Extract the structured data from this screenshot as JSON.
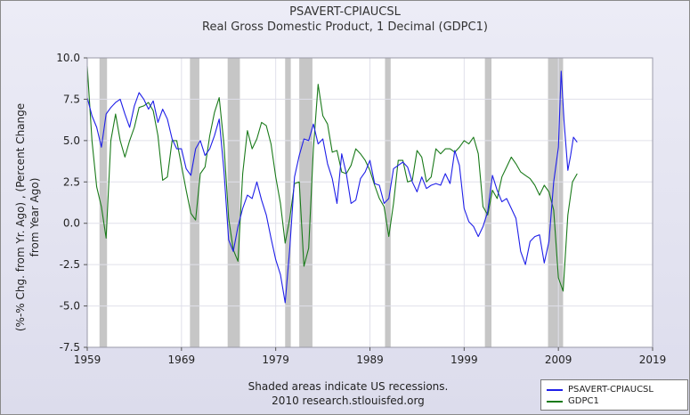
{
  "header": {
    "title": "PSAVERT-CPIAUCSL",
    "subtitle": "Real Gross Domestic Product, 1 Decimal (GDPC1)"
  },
  "footer": {
    "line1": "Shaded areas indicate US recessions.",
    "line2": "2010 research.stlouisfed.org"
  },
  "chart_data": {
    "type": "line",
    "ylabel_lines": [
      "(%-% Chg. from Yr. Ago) , (Percent Change",
      "from Year Ago)"
    ],
    "xlabel": "",
    "xlim": [
      1959,
      2019
    ],
    "ylim": [
      -7.5,
      10.0
    ],
    "x_ticks": [
      1959,
      1969,
      1979,
      1989,
      1999,
      2009,
      2019
    ],
    "y_ticks": [
      -7.5,
      -5.0,
      -2.5,
      0.0,
      2.5,
      5.0,
      7.5,
      10.0
    ],
    "y_tick_labels": [
      "-7.5",
      "-5.0",
      "-2.5",
      "0.0",
      "2.5",
      "5.0",
      "7.5",
      "10.0"
    ],
    "grid": true,
    "legend_position": "bottom-right",
    "recessions": [
      [
        1960.3,
        1961.1
      ],
      [
        1969.9,
        1970.9
      ],
      [
        1973.9,
        1975.2
      ],
      [
        1980.0,
        1980.6
      ],
      [
        1981.5,
        1982.9
      ],
      [
        1990.6,
        1991.2
      ],
      [
        2001.2,
        2001.9
      ],
      [
        2007.9,
        2009.5
      ]
    ],
    "series": [
      {
        "name": "PSAVERT-CPIAUCSL",
        "color": "#1f1fe8",
        "x": [
          1959.0,
          1959.5,
          1960.0,
          1960.5,
          1961.0,
          1961.5,
          1962.0,
          1962.5,
          1963.0,
          1963.5,
          1964.0,
          1964.5,
          1965.0,
          1965.5,
          1966.0,
          1966.5,
          1967.0,
          1967.5,
          1968.0,
          1968.5,
          1969.0,
          1969.5,
          1970.0,
          1970.5,
          1971.0,
          1971.5,
          1972.0,
          1972.5,
          1973.0,
          1973.5,
          1974.0,
          1974.5,
          1975.0,
          1975.5,
          1976.0,
          1976.5,
          1977.0,
          1977.5,
          1978.0,
          1978.5,
          1979.0,
          1979.5,
          1980.0,
          1980.5,
          1981.0,
          1981.5,
          1982.0,
          1982.5,
          1983.0,
          1983.5,
          1984.0,
          1984.5,
          1985.0,
          1985.5,
          1986.0,
          1986.5,
          1987.0,
          1987.5,
          1988.0,
          1988.5,
          1989.0,
          1989.5,
          1990.0,
          1990.5,
          1991.0,
          1991.5,
          1992.0,
          1992.5,
          1993.0,
          1993.5,
          1994.0,
          1994.5,
          1995.0,
          1995.5,
          1996.0,
          1996.5,
          1997.0,
          1997.5,
          1998.0,
          1998.5,
          1999.0,
          1999.5,
          2000.0,
          2000.5,
          2001.0,
          2001.5,
          2002.0,
          2002.5,
          2003.0,
          2003.5,
          2004.0,
          2004.5,
          2005.0,
          2005.5,
          2006.0,
          2006.5,
          2007.0,
          2007.5,
          2008.0,
          2008.5,
          2009.0,
          2009.3,
          2009.6,
          2010.0,
          2010.3,
          2010.6,
          2011.0
        ],
        "y": [
          7.6,
          6.5,
          5.8,
          4.6,
          6.6,
          7.0,
          7.3,
          7.5,
          6.6,
          5.8,
          7.1,
          7.9,
          7.5,
          6.9,
          7.4,
          6.1,
          6.9,
          6.3,
          5.1,
          4.5,
          4.5,
          3.3,
          2.9,
          4.5,
          5.0,
          4.1,
          4.5,
          5.3,
          6.3,
          3.2,
          -1.0,
          -1.7,
          -0.2,
          0.9,
          1.7,
          1.5,
          2.5,
          1.4,
          0.5,
          -0.9,
          -2.2,
          -3.1,
          -4.8,
          -1.5,
          2.8,
          4.1,
          5.1,
          5.0,
          6.0,
          4.8,
          5.1,
          3.6,
          2.7,
          1.2,
          4.2,
          3.0,
          1.2,
          1.4,
          2.7,
          3.1,
          3.8,
          2.4,
          2.3,
          1.2,
          1.5,
          3.3,
          3.5,
          3.7,
          3.4,
          2.5,
          1.9,
          2.8,
          2.1,
          2.3,
          2.4,
          2.3,
          3.0,
          2.4,
          4.4,
          3.5,
          0.9,
          0.1,
          -0.2,
          -0.8,
          -0.2,
          0.7,
          2.9,
          2.0,
          1.3,
          1.5,
          0.9,
          0.3,
          -1.7,
          -2.5,
          -1.1,
          -0.8,
          -0.7,
          -2.4,
          -1.1,
          2.5,
          4.6,
          9.2,
          6.2,
          3.2,
          4.1,
          5.2,
          4.9
        ]
      },
      {
        "name": "GDPC1",
        "color": "#1a7a1a",
        "x": [
          1959.0,
          1959.5,
          1960.0,
          1960.5,
          1961.0,
          1961.5,
          1962.0,
          1962.5,
          1963.0,
          1963.5,
          1964.0,
          1964.5,
          1965.0,
          1965.5,
          1966.0,
          1966.5,
          1967.0,
          1967.5,
          1968.0,
          1968.5,
          1969.0,
          1969.5,
          1970.0,
          1970.5,
          1971.0,
          1971.5,
          1972.0,
          1972.5,
          1973.0,
          1973.5,
          1974.0,
          1974.5,
          1975.0,
          1975.5,
          1976.0,
          1976.5,
          1977.0,
          1977.5,
          1978.0,
          1978.5,
          1979.0,
          1979.5,
          1980.0,
          1980.5,
          1981.0,
          1981.5,
          1982.0,
          1982.5,
          1983.0,
          1983.5,
          1984.0,
          1984.5,
          1985.0,
          1985.5,
          1986.0,
          1986.5,
          1987.0,
          1987.5,
          1988.0,
          1988.5,
          1989.0,
          1989.5,
          1990.0,
          1990.5,
          1991.0,
          1991.5,
          1992.0,
          1992.5,
          1993.0,
          1993.5,
          1994.0,
          1994.5,
          1995.0,
          1995.5,
          1996.0,
          1996.5,
          1997.0,
          1997.5,
          1998.0,
          1998.5,
          1999.0,
          1999.5,
          2000.0,
          2000.5,
          2001.0,
          2001.5,
          2002.0,
          2002.5,
          2003.0,
          2003.5,
          2004.0,
          2004.5,
          2005.0,
          2005.5,
          2006.0,
          2006.5,
          2007.0,
          2007.5,
          2008.0,
          2008.5,
          2009.0,
          2009.5,
          2010.0,
          2010.5,
          2011.0
        ],
        "y": [
          9.5,
          5.0,
          2.2,
          1.0,
          -0.9,
          5.0,
          6.6,
          5.0,
          4.0,
          5.0,
          5.8,
          7.0,
          7.1,
          7.3,
          6.8,
          5.3,
          2.6,
          2.8,
          5.0,
          5.0,
          3.5,
          2.0,
          0.6,
          0.2,
          3.0,
          3.4,
          5.3,
          6.7,
          7.6,
          4.8,
          0.3,
          -1.6,
          -2.3,
          3.0,
          5.6,
          4.5,
          5.1,
          6.1,
          5.9,
          4.8,
          2.8,
          1.2,
          -1.2,
          0.3,
          2.4,
          2.5,
          -2.6,
          -1.5,
          4.5,
          8.4,
          6.5,
          6.0,
          4.3,
          4.4,
          3.1,
          3.0,
          3.5,
          4.5,
          4.2,
          3.8,
          3.2,
          2.3,
          1.5,
          1.0,
          -0.8,
          1.2,
          3.8,
          3.8,
          2.5,
          2.6,
          4.4,
          4.0,
          2.5,
          2.8,
          4.5,
          4.2,
          4.5,
          4.5,
          4.3,
          4.6,
          5.0,
          4.8,
          5.2,
          4.2,
          1.0,
          0.5,
          2.0,
          1.5,
          2.8,
          3.4,
          4.0,
          3.6,
          3.1,
          2.9,
          2.7,
          2.3,
          1.7,
          2.3,
          1.9,
          0.8,
          -3.3,
          -4.1,
          0.5,
          2.5,
          3.0
        ]
      }
    ]
  }
}
